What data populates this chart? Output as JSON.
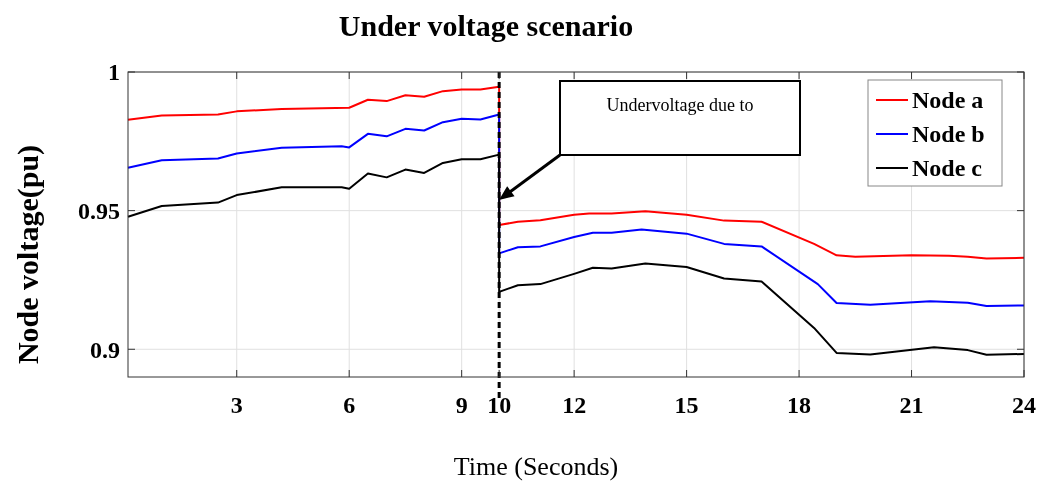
{
  "chart_data": {
    "type": "line",
    "title": "Under voltage scenario",
    "xlabel": "Time (Seconds)",
    "ylabel": "Node voltage(pu)",
    "xlim": [
      0.1,
      24
    ],
    "xticks": [
      3,
      6,
      9,
      10,
      12,
      15,
      18,
      21,
      24
    ],
    "ylim": [
      0.89,
      1
    ],
    "yticks": [
      0.9,
      0.95,
      1
    ],
    "grid": true,
    "legend": "top right",
    "line_style": "solid",
    "marker": "none",
    "series": [
      {
        "name": "Node a",
        "color": "#ff0000",
        "x": [
          0.1,
          1,
          2.5,
          3,
          4.2,
          6,
          6.5,
          7,
          7.5,
          8,
          8.5,
          9,
          9.5,
          10,
          10,
          10.5,
          11.1,
          12,
          12.4,
          13,
          13.9,
          15,
          16,
          17,
          18.4,
          19,
          19.5,
          21,
          22,
          22.5,
          23,
          24
        ],
        "values": [
          0.9828,
          0.9843,
          0.9847,
          0.9858,
          0.9867,
          0.9871,
          0.99,
          0.9895,
          0.9916,
          0.9911,
          0.9931,
          0.9937,
          0.9937,
          0.9947,
          0.9448,
          0.946,
          0.9465,
          0.9485,
          0.949,
          0.949,
          0.9498,
          0.9485,
          0.9464,
          0.946,
          0.938,
          0.9339,
          0.9334,
          0.9339,
          0.9337,
          0.9334,
          0.9327,
          0.933
        ]
      },
      {
        "name": "Node b",
        "color": "#0000ff",
        "x": [
          0.1,
          1,
          2.5,
          3,
          4.2,
          5.8,
          6,
          6.5,
          7,
          7.5,
          8,
          8.5,
          9,
          9.5,
          10,
          10,
          10.5,
          11.1,
          12,
          12.5,
          13,
          13.8,
          15,
          16,
          17,
          18.5,
          19,
          19.9,
          21.5,
          22.5,
          23,
          24
        ],
        "values": [
          0.9655,
          0.9682,
          0.9688,
          0.9706,
          0.9727,
          0.9732,
          0.9728,
          0.9777,
          0.9768,
          0.9795,
          0.9789,
          0.9819,
          0.9831,
          0.9829,
          0.9847,
          0.9346,
          0.9368,
          0.9371,
          0.9405,
          0.942,
          0.942,
          0.9432,
          0.9417,
          0.938,
          0.9371,
          0.9235,
          0.9167,
          0.9161,
          0.9173,
          0.9168,
          0.9156,
          0.9158
        ]
      },
      {
        "name": "Node c",
        "color": "#000000",
        "x": [
          0.1,
          1,
          2.5,
          3,
          4.2,
          5.8,
          6,
          6.5,
          7,
          7.5,
          8,
          8.5,
          9,
          9.5,
          10,
          10,
          10.5,
          11.1,
          12,
          12.5,
          13,
          13.9,
          15,
          16,
          17,
          18.4,
          19,
          19.9,
          21.6,
          22.5,
          23,
          24
        ],
        "values": [
          0.9478,
          0.9517,
          0.9529,
          0.9556,
          0.9584,
          0.9584,
          0.9579,
          0.9634,
          0.962,
          0.9648,
          0.9636,
          0.9672,
          0.9685,
          0.9685,
          0.9702,
          0.9207,
          0.9231,
          0.9235,
          0.9272,
          0.9294,
          0.9291,
          0.9309,
          0.9297,
          0.9255,
          0.9244,
          0.9077,
          0.8987,
          0.8981,
          0.9007,
          0.8997,
          0.898,
          0.8983
        ]
      }
    ],
    "ref_lines": [
      {
        "axis": "x",
        "value": 10,
        "color": "#000000",
        "line_style": "dashed"
      }
    ],
    "annotations": [
      "Undervoltage due to"
    ]
  }
}
